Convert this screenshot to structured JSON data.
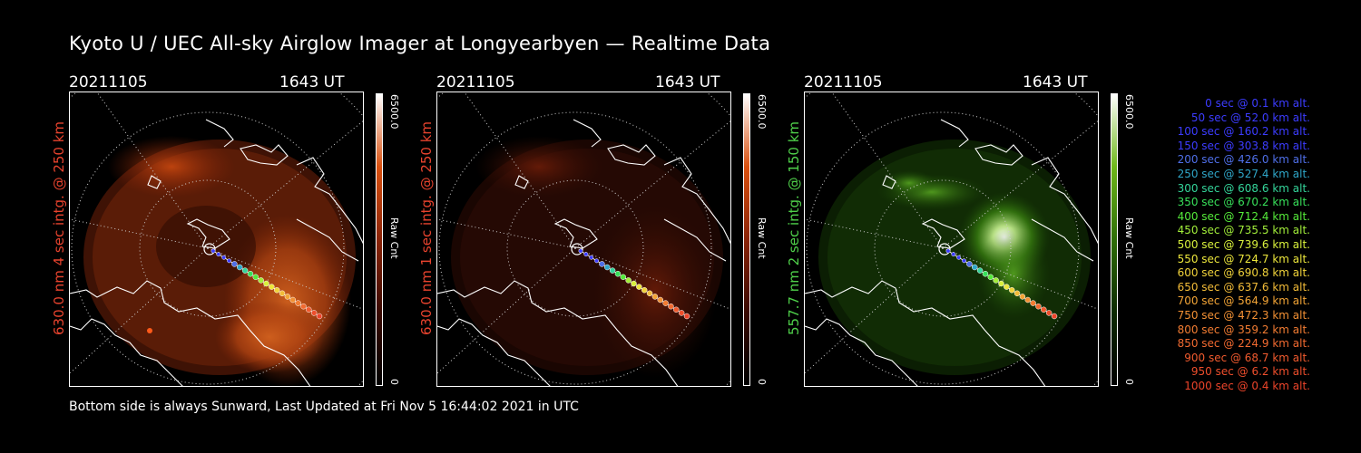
{
  "title": "Kyoto U / UEC All-sky Airglow Imager at Longyearbyen — Realtime Data",
  "footer": "Bottom side is always Sunward, Last Updated at Fri Nov  5 16:44:02 2021 in UTC",
  "panels": [
    {
      "date": "20211105",
      "time": "1643 UT",
      "side_label": "630.0 nm 4 sec intg. @ 250 km",
      "label_color": "#e8432e",
      "cbar_max": "6500.0",
      "cbar_min": "0",
      "cbar_unit": "Raw Cnt",
      "cmap": [
        "#000000",
        "#3a0a02",
        "#8a2408",
        "#d9500f",
        "#ffffff"
      ]
    },
    {
      "date": "20211105",
      "time": "1643 UT",
      "side_label": "630.0 nm 1 sec intg. @ 250 km",
      "label_color": "#e8432e",
      "cbar_max": "6500.0",
      "cbar_min": "0",
      "cbar_unit": "Raw Cnt",
      "cmap": [
        "#000000",
        "#3a0a02",
        "#8a2408",
        "#d9500f",
        "#ffffff"
      ]
    },
    {
      "date": "20211105",
      "time": "1643 UT",
      "side_label": "557.7 nm 2 sec intg. @ 150 km",
      "label_color": "#4fd04a",
      "cbar_max": "6500.0",
      "cbar_min": "0",
      "cbar_unit": "Raw Cnt",
      "cmap": [
        "#000000",
        "#0d2a02",
        "#2f6e08",
        "#6fb81a",
        "#ffffff"
      ]
    }
  ],
  "legend": [
    {
      "text": "0 sec @    0.1 km alt.",
      "color": "#3c3cff"
    },
    {
      "text": "50 sec @   52.0 km alt.",
      "color": "#3c3cff"
    },
    {
      "text": "100 sec @  160.2 km alt.",
      "color": "#3c3cff"
    },
    {
      "text": "150 sec @  303.8 km alt.",
      "color": "#3c3cff"
    },
    {
      "text": "200 sec @  426.0 km alt.",
      "color": "#4f6fe8"
    },
    {
      "text": "250 sec @  527.4 km alt.",
      "color": "#2fa6c8"
    },
    {
      "text": "300 sec @  608.6 km alt.",
      "color": "#34d49a"
    },
    {
      "text": "350 sec @  670.2 km alt.",
      "color": "#38e05a"
    },
    {
      "text": "400 sec @  712.4 km alt.",
      "color": "#55ea3a"
    },
    {
      "text": "450 sec @  735.5 km alt.",
      "color": "#a2ee3a"
    },
    {
      "text": "500 sec @  739.6 km alt.",
      "color": "#d8f03c"
    },
    {
      "text": "550 sec @  724.7 km alt.",
      "color": "#ece63c"
    },
    {
      "text": "600 sec @  690.8 km alt.",
      "color": "#f0d23a"
    },
    {
      "text": "650 sec @  637.6 km alt.",
      "color": "#f2bb38"
    },
    {
      "text": "700 sec @  564.9 km alt.",
      "color": "#f2a436"
    },
    {
      "text": "750 sec @  472.3 km alt.",
      "color": "#f29034"
    },
    {
      "text": "800 sec @  359.2 km alt.",
      "color": "#f27c32"
    },
    {
      "text": "850 sec @  224.9 km alt.",
      "color": "#f26a30"
    },
    {
      "text": "900 sec @   68.7 km alt.",
      "color": "#f05a2e"
    },
    {
      "text": "950 sec @    6.2 km alt.",
      "color": "#ee4e2c"
    },
    {
      "text": "1000 sec @    0.4 km alt.",
      "color": "#ec442a"
    }
  ]
}
